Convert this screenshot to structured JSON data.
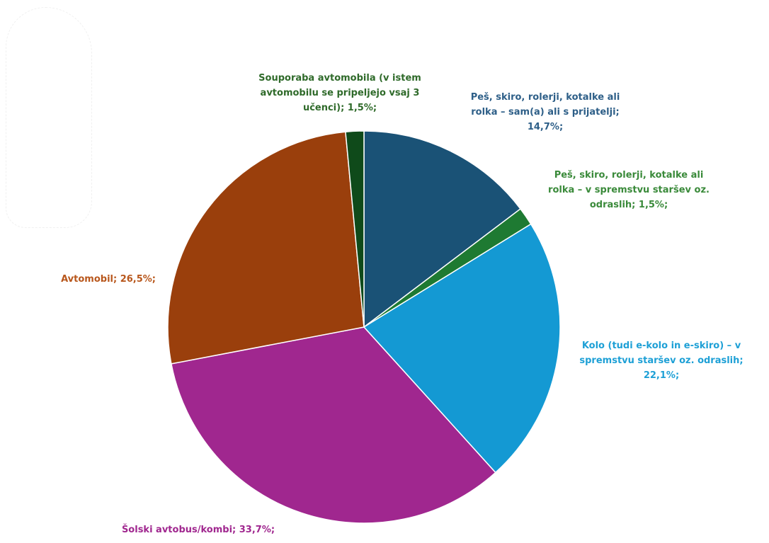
{
  "chart_data": {
    "type": "pie",
    "title": "",
    "start_angle_deg": 0,
    "direction": "clockwise",
    "slices": [
      {
        "label": "Peš, skiro, rolerji, kotalke ali rolka – sam(a) ali s prijatelji; 14,7%;",
        "value": 14.7,
        "color": "#1a5276"
      },
      {
        "label": "Peš, skiro, rolerji, kotalke ali rolka – v spremstvu staršev oz. odraslih; 1,5%;",
        "value": 1.5,
        "color": "#1e7a32"
      },
      {
        "label": "Kolo (tudi e-kolo in e-skiro) – v spremstvu staršev oz. odraslih; 22,1%;",
        "value": 22.1,
        "color": "#1499d3"
      },
      {
        "label": "Šolski avtobus/kombi; 33,7%;",
        "value": 33.7,
        "color": "#a0278f"
      },
      {
        "label": "Avtomobil; 26,5%;",
        "value": 26.5,
        "color": "#9a3f0c"
      },
      {
        "label": "Souporaba avtomobila (v istem avtomobilu se pripeljejo vsaj 3 učenci); 1,5%;",
        "value": 1.5,
        "color": "#0f4a1a"
      }
    ],
    "label_colors": {
      "walk_alone": "#2e5f88",
      "walk_adults": "#3a8a3a",
      "bike": "#1ea0d6",
      "bus": "#a0278f",
      "car": "#b8571c",
      "carpool": "#2f6a2a"
    }
  },
  "labels": {
    "walk_alone": [
      "Peš, skiro, rolerji, kotalke ali",
      "rolka – sam(a) ali s prijatelji;",
      "14,7%;"
    ],
    "walk_adults": [
      "Peš, skiro, rolerji, kotalke ali",
      "rolka – v spremstvu staršev oz.",
      "odraslih; 1,5%;"
    ],
    "bike": [
      "Kolo (tudi e-kolo in e-skiro) – v",
      "spremstvu staršev oz. odraslih;",
      "22,1%;"
    ],
    "bus": [
      "Šolski avtobus/kombi; 33,7%;"
    ],
    "car": [
      "Avtomobil; 26,5%;"
    ],
    "carpool": [
      "Souporaba avtomobila (v istem",
      "avtomobilu se pripeljejo vsaj 3",
      "učenci); 1,5%;"
    ]
  }
}
